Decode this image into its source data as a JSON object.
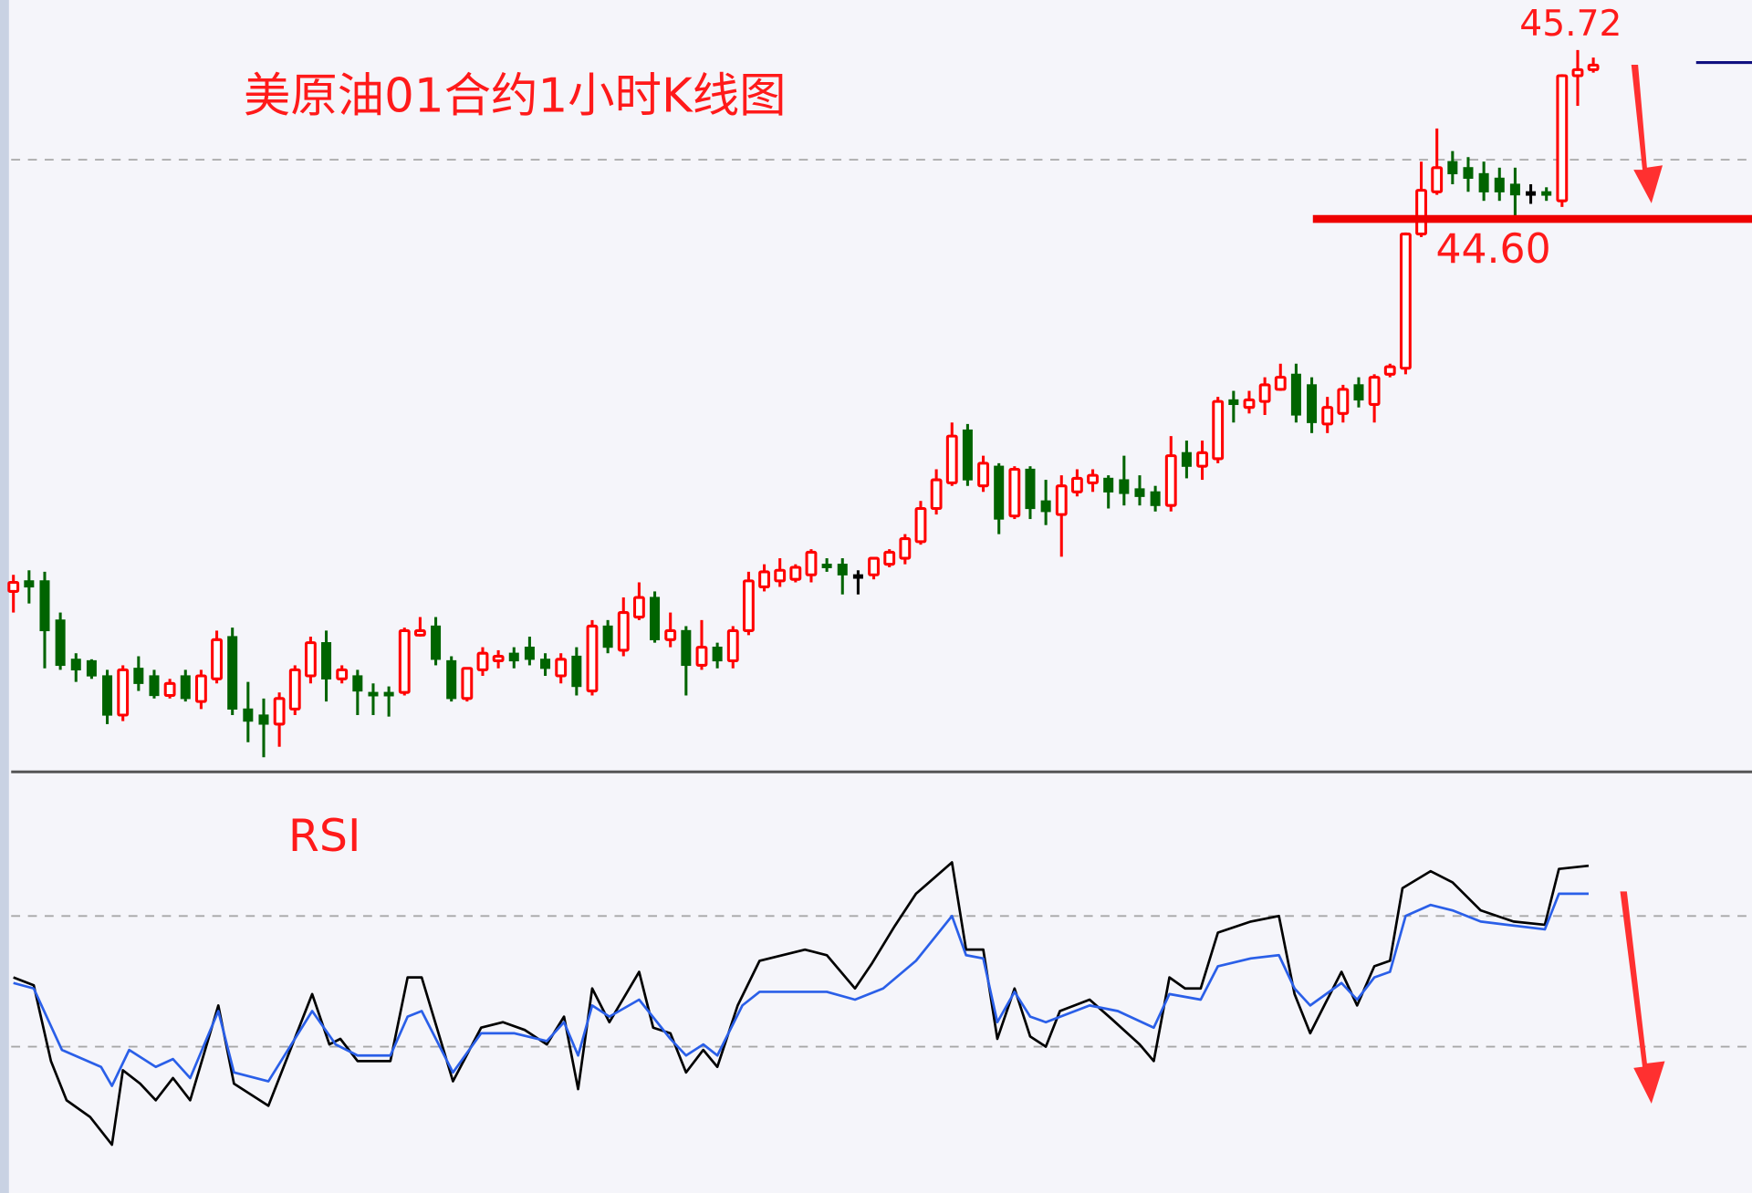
{
  "chart_data": [
    {
      "type": "candlestick",
      "title": "美原油01合约1小时K线图",
      "up_color": "#ff0000",
      "down_color": "#006400",
      "flat_color": "#000000",
      "annotations": {
        "high_label": "45.72",
        "support_label": "44.60",
        "support_level": 44.6,
        "support_color": "#ee0000",
        "arrow_direction": "down",
        "arrow_color": "#ff3030"
      },
      "candles_ohlc": [
        [
          42.13,
          42.24,
          41.99,
          42.19
        ],
        [
          42.2,
          42.27,
          42.05,
          42.16
        ],
        [
          42.2,
          42.26,
          41.62,
          41.87
        ],
        [
          41.94,
          41.99,
          41.61,
          41.64
        ],
        [
          41.68,
          41.72,
          41.53,
          41.61
        ],
        [
          41.67,
          41.68,
          41.55,
          41.57
        ],
        [
          41.57,
          41.61,
          41.25,
          41.31
        ],
        [
          41.31,
          41.64,
          41.27,
          41.61
        ],
        [
          41.62,
          41.7,
          41.47,
          41.52
        ],
        [
          41.57,
          41.61,
          41.42,
          41.44
        ],
        [
          41.44,
          41.55,
          41.42,
          41.52
        ],
        [
          41.57,
          41.61,
          41.4,
          41.42
        ],
        [
          41.4,
          41.61,
          41.35,
          41.57
        ],
        [
          41.55,
          41.87,
          41.52,
          41.81
        ],
        [
          41.83,
          41.89,
          41.31,
          41.35
        ],
        [
          41.35,
          41.53,
          41.13,
          41.27
        ],
        [
          41.31,
          41.42,
          41.03,
          41.25
        ],
        [
          41.25,
          41.46,
          41.1,
          41.42
        ],
        [
          41.35,
          41.64,
          41.31,
          41.61
        ],
        [
          41.57,
          41.83,
          41.52,
          41.79
        ],
        [
          41.79,
          41.87,
          41.4,
          41.55
        ],
        [
          41.55,
          41.64,
          41.52,
          41.61
        ],
        [
          41.57,
          41.61,
          41.31,
          41.47
        ],
        [
          41.46,
          41.52,
          41.31,
          41.44
        ],
        [
          41.46,
          41.5,
          41.3,
          41.44
        ],
        [
          41.46,
          41.89,
          41.44,
          41.87
        ],
        [
          41.84,
          41.96,
          41.83,
          41.87
        ],
        [
          41.9,
          41.96,
          41.64,
          41.68
        ],
        [
          41.67,
          41.7,
          41.4,
          41.42
        ],
        [
          41.42,
          41.62,
          41.4,
          41.62
        ],
        [
          41.61,
          41.76,
          41.57,
          41.72
        ],
        [
          41.67,
          41.74,
          41.62,
          41.7
        ],
        [
          41.72,
          41.76,
          41.62,
          41.67
        ],
        [
          41.76,
          41.83,
          41.64,
          41.68
        ],
        [
          41.68,
          41.72,
          41.57,
          41.62
        ],
        [
          41.57,
          41.72,
          41.52,
          41.68
        ],
        [
          41.7,
          41.76,
          41.44,
          41.5
        ],
        [
          41.47,
          41.94,
          41.44,
          41.9
        ],
        [
          41.9,
          41.94,
          41.72,
          41.76
        ],
        [
          41.74,
          42.09,
          41.7,
          41.99
        ],
        [
          41.96,
          42.19,
          41.94,
          42.09
        ],
        [
          42.09,
          42.13,
          41.79,
          41.81
        ],
        [
          41.81,
          41.99,
          41.76,
          41.87
        ],
        [
          41.87,
          41.9,
          41.44,
          41.64
        ],
        [
          41.64,
          41.94,
          41.61,
          41.76
        ],
        [
          41.76,
          41.79,
          41.62,
          41.67
        ],
        [
          41.67,
          41.9,
          41.62,
          41.87
        ],
        [
          41.87,
          42.26,
          41.84,
          42.2
        ],
        [
          42.16,
          42.31,
          42.13,
          42.26
        ],
        [
          42.2,
          42.35,
          42.16,
          42.27
        ],
        [
          42.21,
          42.31,
          42.19,
          42.29
        ],
        [
          42.24,
          42.41,
          42.19,
          42.39
        ],
        [
          42.31,
          42.35,
          42.26,
          42.29
        ],
        [
          42.31,
          42.35,
          42.11,
          42.24
        ],
        [
          42.24,
          42.27,
          42.11,
          42.24
        ],
        [
          42.24,
          42.35,
          42.21,
          42.35
        ],
        [
          42.31,
          42.41,
          42.29,
          42.39
        ],
        [
          42.35,
          42.51,
          42.31,
          42.48
        ],
        [
          42.46,
          42.73,
          42.44,
          42.68
        ],
        [
          42.68,
          42.94,
          42.64,
          42.87
        ],
        [
          42.85,
          43.25,
          42.83,
          43.16
        ],
        [
          43.2,
          43.24,
          42.83,
          42.87
        ],
        [
          42.83,
          43.03,
          42.79,
          42.98
        ],
        [
          42.96,
          42.98,
          42.51,
          42.61
        ],
        [
          42.63,
          42.96,
          42.61,
          42.94
        ],
        [
          42.94,
          42.96,
          42.61,
          42.68
        ],
        [
          42.73,
          42.87,
          42.57,
          42.66
        ],
        [
          42.64,
          42.9,
          42.36,
          42.83
        ],
        [
          42.79,
          42.94,
          42.76,
          42.88
        ],
        [
          42.85,
          42.94,
          42.79,
          42.9
        ],
        [
          42.88,
          42.9,
          42.68,
          42.79
        ],
        [
          42.87,
          43.03,
          42.7,
          42.78
        ],
        [
          42.81,
          42.9,
          42.7,
          42.76
        ],
        [
          42.79,
          42.83,
          42.66,
          42.7
        ],
        [
          42.7,
          43.16,
          42.66,
          43.03
        ],
        [
          43.05,
          43.13,
          42.88,
          42.96
        ],
        [
          42.96,
          43.13,
          42.87,
          43.05
        ],
        [
          43.01,
          43.42,
          42.98,
          43.39
        ],
        [
          43.4,
          43.46,
          43.25,
          43.37
        ],
        [
          43.35,
          43.46,
          43.31,
          43.4
        ],
        [
          43.39,
          43.55,
          43.3,
          43.5
        ],
        [
          43.47,
          43.64,
          43.46,
          43.55
        ],
        [
          43.57,
          43.64,
          43.25,
          43.3
        ],
        [
          43.5,
          43.55,
          43.18,
          43.25
        ],
        [
          43.24,
          43.42,
          43.18,
          43.35
        ],
        [
          43.31,
          43.5,
          43.25,
          43.47
        ],
        [
          43.5,
          43.55,
          43.35,
          43.4
        ],
        [
          43.37,
          43.57,
          43.25,
          43.55
        ],
        [
          43.57,
          43.64,
          43.55,
          43.62
        ],
        [
          43.61,
          44.51,
          43.57,
          44.5
        ],
        [
          44.5,
          44.98,
          44.48,
          44.79
        ],
        [
          44.78,
          45.2,
          44.76,
          44.94
        ],
        [
          44.98,
          45.05,
          44.83,
          44.9
        ],
        [
          44.94,
          45.01,
          44.78,
          44.87
        ],
        [
          44.9,
          44.98,
          44.72,
          44.78
        ],
        [
          44.87,
          44.94,
          44.72,
          44.78
        ],
        [
          44.83,
          44.94,
          44.6,
          44.76
        ],
        [
          44.78,
          44.83,
          44.7,
          44.78
        ],
        [
          44.78,
          44.81,
          44.72,
          44.76
        ],
        [
          44.72,
          45.56,
          44.68,
          45.55
        ],
        [
          45.55,
          45.72,
          45.35,
          45.59
        ],
        [
          45.59,
          45.67,
          45.57,
          45.62
        ]
      ],
      "grid": false
    },
    {
      "type": "line",
      "title": "RSI",
      "ylim": [
        0,
        100
      ],
      "reference_levels": [
        70,
        30
      ],
      "arrow_direction": "down",
      "series": [
        {
          "color": "#000000",
          "points": [
            [
              0,
              51.2
            ],
            [
              1.3,
              48.8
            ],
            [
              2.4,
              25.6
            ],
            [
              3.4,
              13.6
            ],
            [
              4.9,
              8.5
            ],
            [
              6.3,
              0
            ],
            [
              7,
              22.8
            ],
            [
              8.1,
              18.7
            ],
            [
              9.1,
              13.6
            ],
            [
              10.2,
              20.4
            ],
            [
              11.3,
              13.6
            ],
            [
              13.1,
              42.6
            ],
            [
              14.1,
              18.7
            ],
            [
              16.3,
              11.9
            ],
            [
              19.1,
              46.1
            ],
            [
              20.2,
              30.7
            ],
            [
              20.9,
              32.4
            ],
            [
              22,
              25.6
            ],
            [
              24.1,
              25.6
            ],
            [
              25.2,
              51.2
            ],
            [
              26.1,
              51.2
            ],
            [
              28.1,
              19.4
            ],
            [
              29.9,
              35.8
            ],
            [
              31.3,
              37.5
            ],
            [
              32.7,
              35.1
            ],
            [
              34.1,
              30.7
            ],
            [
              35.2,
              39.2
            ],
            [
              36.1,
              17.0
            ],
            [
              37,
              47.8
            ],
            [
              38.1,
              37.5
            ],
            [
              40,
              52.9
            ],
            [
              40.9,
              35.8
            ],
            [
              42,
              34.1
            ],
            [
              43,
              22.1
            ],
            [
              44.1,
              29.0
            ],
            [
              45,
              23.8
            ],
            [
              46.3,
              42.6
            ],
            [
              47.7,
              56.3
            ],
            [
              50.6,
              59.7
            ],
            [
              52,
              58.0
            ],
            [
              53.8,
              47.8
            ],
            [
              54.9,
              55.6
            ],
            [
              56.3,
              66.6
            ],
            [
              57.7,
              76.8
            ],
            [
              60,
              86.4
            ],
            [
              60.9,
              59.7
            ],
            [
              62,
              59.7
            ],
            [
              62.9,
              32.4
            ],
            [
              64,
              47.8
            ],
            [
              65,
              33.1
            ],
            [
              66,
              30
            ],
            [
              66.9,
              40.9
            ],
            [
              68.8,
              44.4
            ],
            [
              70.2,
              38.5
            ],
            [
              72,
              30.7
            ],
            [
              72.9,
              25.6
            ],
            [
              73.9,
              51.2
            ],
            [
              74.9,
              47.8
            ],
            [
              75.9,
              47.8
            ],
            [
              77,
              64.9
            ],
            [
              79.1,
              68.3
            ],
            [
              80.9,
              70
            ],
            [
              81.9,
              46.1
            ],
            [
              82.9,
              34.1
            ],
            [
              83.8,
              42.6
            ],
            [
              84.9,
              52.9
            ],
            [
              85.9,
              42.6
            ],
            [
              87,
              54.6
            ],
            [
              88,
              56.3
            ],
            [
              88.8,
              78.5
            ],
            [
              90.6,
              83.7
            ],
            [
              92,
              80.3
            ],
            [
              93.8,
              71.7
            ],
            [
              95.9,
              68.3
            ],
            [
              97.9,
              67.3
            ],
            [
              98.8,
              84.4
            ],
            [
              100.7,
              85.4
            ]
          ]
        },
        {
          "color": "#2a5fe8",
          "points": [
            [
              0,
              49.5
            ],
            [
              1.3,
              47.8
            ],
            [
              3.1,
              29.0
            ],
            [
              5.6,
              23.8
            ],
            [
              6.3,
              18.0
            ],
            [
              7.4,
              29.0
            ],
            [
              9.1,
              23.8
            ],
            [
              10.2,
              26.2
            ],
            [
              11.3,
              20.4
            ],
            [
              13.1,
              40.9
            ],
            [
              14.1,
              22.1
            ],
            [
              16.3,
              19.4
            ],
            [
              19.1,
              40.9
            ],
            [
              20.6,
              30.7
            ],
            [
              22,
              27.3
            ],
            [
              24.1,
              27.3
            ],
            [
              25.2,
              39.2
            ],
            [
              26.1,
              40.9
            ],
            [
              28.1,
              22.1
            ],
            [
              29.9,
              34.1
            ],
            [
              32,
              34.1
            ],
            [
              34.1,
              31.7
            ],
            [
              35.2,
              37.5
            ],
            [
              36.1,
              27.3
            ],
            [
              37,
              42.6
            ],
            [
              38.1,
              39.2
            ],
            [
              40,
              44.4
            ],
            [
              42,
              32.4
            ],
            [
              43,
              27.3
            ],
            [
              44.1,
              30.7
            ],
            [
              45,
              27.3
            ],
            [
              46.6,
              42.6
            ],
            [
              47.7,
              46.8
            ],
            [
              52,
              46.8
            ],
            [
              53.8,
              44.4
            ],
            [
              55.6,
              47.8
            ],
            [
              57.7,
              56.3
            ],
            [
              60,
              70
            ],
            [
              60.9,
              58.0
            ],
            [
              62,
              57.0
            ],
            [
              62.9,
              37.5
            ],
            [
              64,
              46.8
            ],
            [
              65,
              39.2
            ],
            [
              66,
              37.5
            ],
            [
              68.8,
              42.6
            ],
            [
              70.6,
              40.9
            ],
            [
              72.9,
              35.8
            ],
            [
              73.9,
              46.1
            ],
            [
              75.9,
              44.4
            ],
            [
              77,
              54.6
            ],
            [
              79.1,
              57.0
            ],
            [
              80.9,
              58.0
            ],
            [
              81.9,
              47.8
            ],
            [
              82.9,
              42.6
            ],
            [
              84.9,
              49.5
            ],
            [
              85.9,
              44.4
            ],
            [
              87,
              51.2
            ],
            [
              88,
              52.9
            ],
            [
              89,
              70
            ],
            [
              90.6,
              73.4
            ],
            [
              92,
              71.7
            ],
            [
              93.8,
              68.3
            ],
            [
              97.9,
              65.9
            ],
            [
              98.8,
              76.8
            ],
            [
              100.7,
              76.8
            ]
          ]
        }
      ]
    }
  ]
}
